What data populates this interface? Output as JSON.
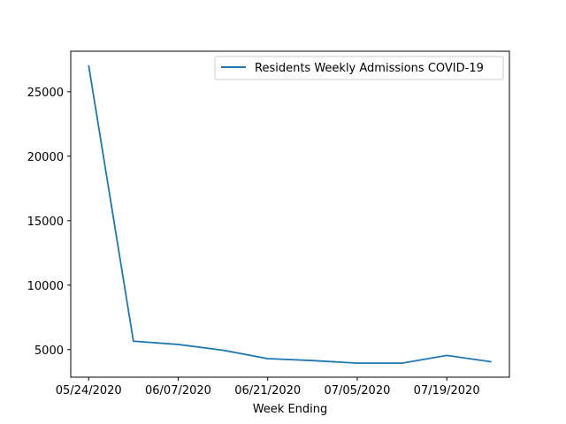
{
  "chart_data": {
    "type": "line",
    "x": [
      "05/24/2020",
      "05/31/2020",
      "06/07/2020",
      "06/14/2020",
      "06/21/2020",
      "06/28/2020",
      "07/05/2020",
      "07/12/2020",
      "07/19/2020",
      "07/26/2020"
    ],
    "series": [
      {
        "name": "Residents Weekly Admissions COVID-19",
        "values": [
          27050,
          5650,
          5400,
          4950,
          4300,
          4150,
          3950,
          3950,
          4550,
          4050
        ],
        "color": "#1f77b4"
      }
    ],
    "xticks": [
      "05/24/2020",
      "06/07/2020",
      "06/21/2020",
      "07/05/2020",
      "07/19/2020"
    ],
    "yticks": [
      5000,
      10000,
      15000,
      20000,
      25000
    ],
    "xlabel": "Week Ending",
    "ylabel": "",
    "title": "",
    "ylim": [
      2860,
      28140
    ],
    "xlim_index": [
      -0.4,
      9.4
    ],
    "grid": false,
    "legend_position": "upper right"
  }
}
